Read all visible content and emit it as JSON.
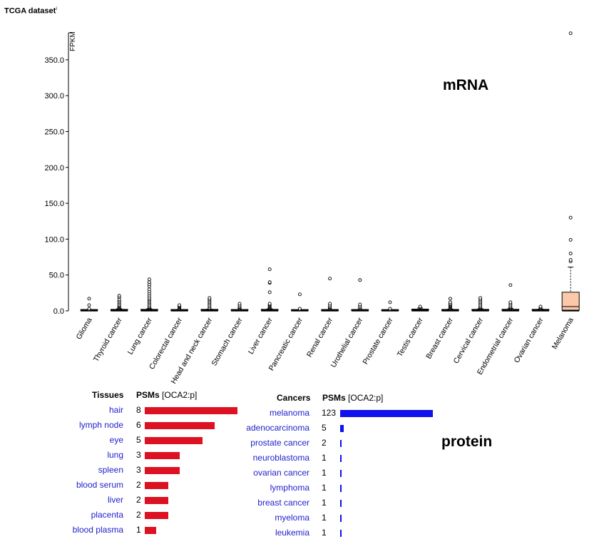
{
  "header": {
    "title": "TCGA dataset",
    "title_sup": "i"
  },
  "labels": {
    "mrna": "mRNA",
    "protein": "protein"
  },
  "colors": {
    "tissue_bar": "#dd1122",
    "cancer_bar": "#1111ee",
    "melanoma_box": "#fcc8aa",
    "link": "#2222cc"
  },
  "chart_data": {
    "type": "box",
    "ylabel": "FPKM",
    "ylim": [
      0,
      390
    ],
    "yticks": [
      "0.0",
      "50.0",
      "100.0",
      "150.0",
      "200.0",
      "250.0",
      "300.0",
      "350.0"
    ],
    "categories": [
      "Glioma",
      "Thyroid cancer",
      "Lung cancer",
      "Colorectal cancer",
      "Head and neck cancer",
      "Stomach cancer",
      "Liver cancer",
      "Pancreatic cancer",
      "Renal cancer",
      "Urothelial cancer",
      "Prostate cancer",
      "Testis cancer",
      "Breast cancer",
      "Cervical cancer",
      "Endometrial cancer",
      "Ovarian cancer",
      "Melanoma"
    ],
    "boxes": [
      {
        "q1": 0.3,
        "median": 0.6,
        "q3": 1.0,
        "whisker_low": 0,
        "whisker_high": 1.5,
        "outliers": [
          2,
          3,
          8,
          17
        ]
      },
      {
        "q1": 0.5,
        "median": 1.0,
        "q3": 1.8,
        "whisker_low": 0,
        "whisker_high": 3,
        "outliers": [
          4,
          5,
          6,
          7,
          8,
          10,
          12,
          14,
          16,
          19,
          21
        ]
      },
      {
        "q1": 0.5,
        "median": 1.0,
        "q3": 2.0,
        "whisker_low": 0,
        "whisker_high": 3,
        "outliers": [
          4,
          5,
          6,
          8,
          10,
          12,
          14,
          16,
          18,
          21,
          24,
          27,
          30,
          34,
          37,
          40,
          44
        ]
      },
      {
        "q1": 0.3,
        "median": 0.7,
        "q3": 1.2,
        "whisker_low": 0,
        "whisker_high": 2,
        "outliers": [
          3,
          4,
          5,
          6,
          7,
          8
        ]
      },
      {
        "q1": 0.5,
        "median": 0.9,
        "q3": 1.5,
        "whisker_low": 0,
        "whisker_high": 2.5,
        "outliers": [
          4,
          6,
          8,
          10,
          12,
          14,
          16,
          18
        ]
      },
      {
        "q1": 0.3,
        "median": 0.6,
        "q3": 1.0,
        "whisker_low": 0,
        "whisker_high": 2,
        "outliers": [
          3,
          4,
          5,
          6,
          8,
          10
        ]
      },
      {
        "q1": 0.5,
        "median": 1.0,
        "q3": 2.0,
        "whisker_low": 0,
        "whisker_high": 3,
        "outliers": [
          4,
          5,
          6,
          7,
          8,
          9,
          10,
          26,
          39,
          40,
          58
        ]
      },
      {
        "q1": 0.2,
        "median": 0.5,
        "q3": 0.9,
        "whisker_low": 0,
        "whisker_high": 1.5,
        "outliers": [
          2,
          3,
          23
        ]
      },
      {
        "q1": 0.3,
        "median": 0.7,
        "q3": 1.2,
        "whisker_low": 0,
        "whisker_high": 2,
        "outliers": [
          3,
          4,
          5,
          6,
          8,
          10,
          45
        ]
      },
      {
        "q1": 0.3,
        "median": 0.6,
        "q3": 1.1,
        "whisker_low": 0,
        "whisker_high": 2,
        "outliers": [
          3,
          4,
          5,
          7,
          9,
          43
        ]
      },
      {
        "q1": 0.2,
        "median": 0.5,
        "q3": 0.9,
        "whisker_low": 0,
        "whisker_high": 1.5,
        "outliers": [
          2,
          3,
          12
        ]
      },
      {
        "q1": 0.8,
        "median": 1.5,
        "q3": 2.5,
        "whisker_low": 0,
        "whisker_high": 4,
        "outliers": [
          5,
          6
        ]
      },
      {
        "q1": 0.4,
        "median": 0.8,
        "q3": 1.3,
        "whisker_low": 0,
        "whisker_high": 2.5,
        "outliers": [
          3,
          4,
          5,
          6,
          7,
          8,
          9,
          10,
          12,
          17
        ]
      },
      {
        "q1": 0.5,
        "median": 1.0,
        "q3": 1.8,
        "whisker_low": 0,
        "whisker_high": 3,
        "outliers": [
          4,
          5,
          6,
          8,
          10,
          12,
          14,
          16,
          18
        ]
      },
      {
        "q1": 0.6,
        "median": 1.2,
        "q3": 2.0,
        "whisker_low": 0,
        "whisker_high": 3.5,
        "outliers": [
          4,
          5,
          6,
          8,
          10,
          12,
          36
        ]
      },
      {
        "q1": 0.5,
        "median": 1.0,
        "q3": 1.6,
        "whisker_low": 0,
        "whisker_high": 2.5,
        "outliers": [
          3,
          4,
          5,
          6
        ]
      },
      {
        "q1": 1.0,
        "median": 6.0,
        "q3": 26.0,
        "whisker_low": 0,
        "whisker_high": 61,
        "outliers": [
          69,
          71,
          80,
          99,
          130,
          387
        ]
      }
    ]
  },
  "protein": {
    "tissues": {
      "header_left": "Tissues",
      "header_psm": "PSMs",
      "header_gene": "[OCA2:p]",
      "rows": [
        {
          "name": "hair",
          "count": "8",
          "value": 8
        },
        {
          "name": "lymph node",
          "count": "6",
          "value": 6
        },
        {
          "name": "eye",
          "count": "5",
          "value": 5
        },
        {
          "name": "lung",
          "count": "3",
          "value": 3
        },
        {
          "name": "spleen",
          "count": "3",
          "value": 3
        },
        {
          "name": "blood serum",
          "count": "2",
          "value": 2
        },
        {
          "name": "liver",
          "count": "2",
          "value": 2
        },
        {
          "name": "placenta",
          "count": "2",
          "value": 2
        },
        {
          "name": "blood plasma",
          "count": "1",
          "value": 1
        }
      ]
    },
    "cancers": {
      "header_left": "Cancers",
      "header_psm": "PSMs",
      "header_gene": "[OCA2:p]",
      "rows": [
        {
          "name": "melanoma",
          "count": "123",
          "value": 123
        },
        {
          "name": "adenocarcinoma",
          "count": "5",
          "value": 5
        },
        {
          "name": "prostate cancer",
          "count": "2",
          "value": 2
        },
        {
          "name": "neuroblastoma",
          "count": "1",
          "value": 1
        },
        {
          "name": "ovarian cancer",
          "count": "1",
          "value": 1
        },
        {
          "name": "lymphoma",
          "count": "1",
          "value": 1
        },
        {
          "name": "breast cancer",
          "count": "1",
          "value": 1
        },
        {
          "name": "myeloma",
          "count": "1",
          "value": 1
        },
        {
          "name": "leukemia",
          "count": "1",
          "value": 1
        }
      ]
    }
  }
}
